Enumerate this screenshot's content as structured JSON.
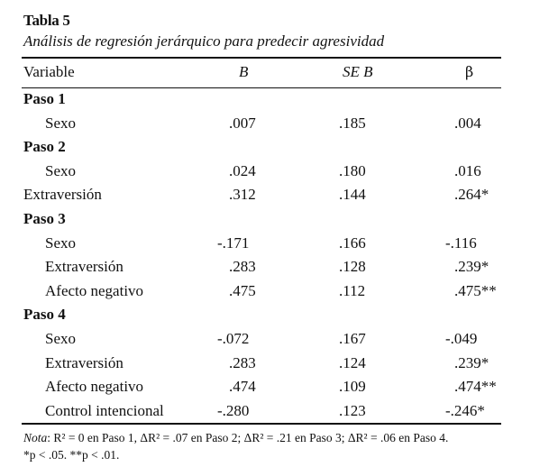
{
  "table": {
    "title": "Tabla 5",
    "subtitle": "Análisis de regresión jerárquico para predecir agresividad",
    "headers": {
      "variable": "Variable",
      "b": "B",
      "se": "SE B",
      "beta": "β"
    },
    "rows": [
      {
        "kind": "step",
        "label": "Paso 1"
      },
      {
        "kind": "data",
        "label": "Sexo",
        "b": ".007",
        "se": ".185",
        "beta": ".004"
      },
      {
        "kind": "step",
        "label": "Paso 2"
      },
      {
        "kind": "data",
        "label": "Sexo",
        "b": ".024",
        "se": ".180",
        "beta": ".016"
      },
      {
        "kind": "data",
        "flush": true,
        "label": "Extraversión",
        "b": ".312",
        "se": ".144",
        "beta": ".264*"
      },
      {
        "kind": "step",
        "label": "Paso 3"
      },
      {
        "kind": "data",
        "label": "Sexo",
        "b": "-.171",
        "se": ".166",
        "beta": "-.116"
      },
      {
        "kind": "data",
        "label": "Extraversión",
        "b": ".283",
        "se": ".128",
        "beta": ".239*"
      },
      {
        "kind": "data",
        "label": "Afecto negativo",
        "b": ".475",
        "se": ".112",
        "beta": ".475**"
      },
      {
        "kind": "step",
        "label": "Paso 4"
      },
      {
        "kind": "data",
        "label": "Sexo",
        "b": "-.072",
        "se": ".167",
        "beta": "-.049"
      },
      {
        "kind": "data",
        "label": "Extraversión",
        "b": ".283",
        "se": ".124",
        "beta": ".239*"
      },
      {
        "kind": "data",
        "label": "Afecto negativo",
        "b": ".474",
        "se": ".109",
        "beta": ".474**"
      },
      {
        "kind": "data",
        "label": "Control intencional",
        "b": "-.280",
        "se": ".123",
        "beta": "-.246*"
      }
    ],
    "note": {
      "lead": "Nota",
      "line1": ": R² = 0 en Paso 1, ΔR² = .07 en Paso 2; ΔR² = .21 en Paso 3; ΔR² = .06 en Paso 4.",
      "line2": "*p < .05. **p < .01."
    }
  }
}
